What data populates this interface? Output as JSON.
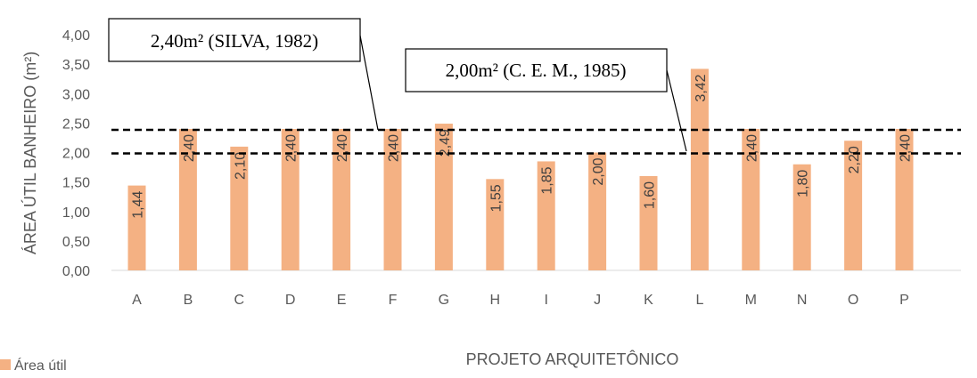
{
  "chart_data": {
    "type": "bar",
    "title": "",
    "xlabel": "PROJETO ARQUITETÔNICO",
    "ylabel": "ÁREA ÚTIL BANHEIRO (m²)",
    "ylim": [
      0,
      4.0
    ],
    "yticks": [
      "0,00",
      "0,50",
      "1,00",
      "1,50",
      "2,00",
      "2,50",
      "3,00",
      "3,50",
      "4,00"
    ],
    "categories": [
      "A",
      "B",
      "C",
      "D",
      "E",
      "F",
      "G",
      "H",
      "I",
      "J",
      "K",
      "L",
      "M",
      "N",
      "O",
      "P"
    ],
    "series": [
      {
        "name": "Área útil",
        "color": "#F4B183",
        "values": [
          1.44,
          2.4,
          2.1,
          2.4,
          2.4,
          2.4,
          2.49,
          1.55,
          1.85,
          2.0,
          1.6,
          3.42,
          2.4,
          1.8,
          2.2,
          2.4
        ],
        "labels": [
          "1,44",
          "2,40",
          "2,10",
          "2,40",
          "2,40",
          "2,40",
          "2,49",
          "1,55",
          "1,85",
          "2,00",
          "1,60",
          "3,42",
          "2,40",
          "1,80",
          "2,20",
          "2,40"
        ]
      }
    ],
    "reference_lines": [
      {
        "value": 2.4,
        "label": "2,40m² (SILVA, 1982)"
      },
      {
        "value": 2.0,
        "label": "2,00m² (C. E. M., 1985)"
      }
    ],
    "legend": {
      "position": "bottom-left"
    },
    "grid": false
  }
}
